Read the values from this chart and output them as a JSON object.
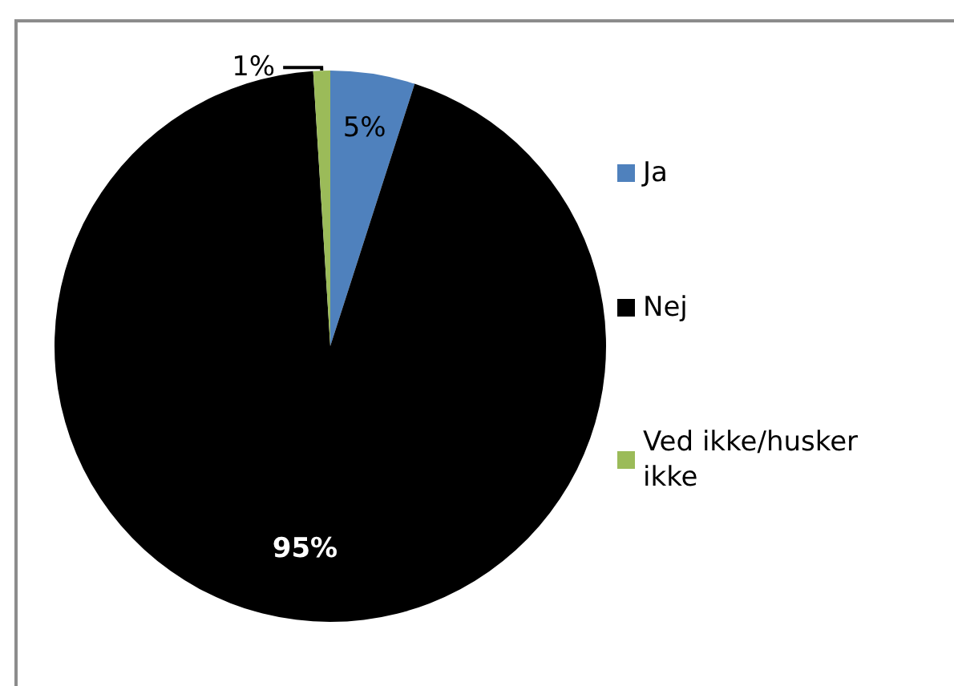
{
  "chart_data": {
    "type": "pie",
    "categories": [
      "Ja",
      "Nej",
      "Ved ikke/husker ikke"
    ],
    "values": [
      5,
      95,
      1
    ],
    "colors": [
      "#4f81bd",
      "#000000",
      "#9bbb59"
    ],
    "value_labels": [
      "5%",
      "95%",
      "1%"
    ],
    "legend": "right"
  }
}
